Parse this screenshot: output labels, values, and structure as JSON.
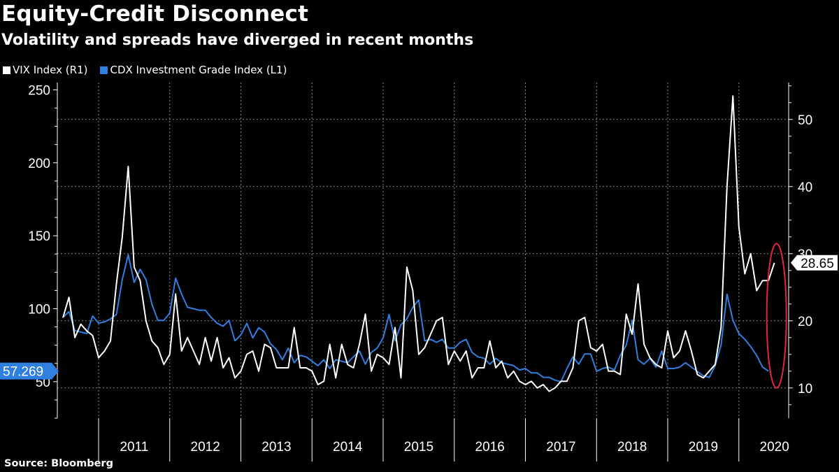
{
  "title": "Equity-Credit Disconnect",
  "subtitle": "Volatility and spreads have diverged in recent months",
  "source": "Source:  Bloomberg",
  "colors": {
    "vix": "#ffffff",
    "cdx": "#2f7fe0",
    "highlight": "#e0263a",
    "grid": "#8a8a8a"
  },
  "chart_data": {
    "type": "line",
    "title": "Equity-Credit Disconnect",
    "subtitle": "Volatility and spreads have diverged in recent months",
    "x_start": 2010.5,
    "x_step": 0.0833333,
    "xlim": [
      2010.42,
      2020.7
    ],
    "year_labels": [
      "2011",
      "2012",
      "2013",
      "2014",
      "2015",
      "2016",
      "2017",
      "2018",
      "2019",
      "2020"
    ],
    "left_axis": {
      "series": "CDX Investment Grade Index (L1)",
      "ylim": [
        25,
        255
      ],
      "ticks": [
        50,
        100,
        150,
        200,
        250
      ]
    },
    "right_axis": {
      "series": "VIX Index (R1)",
      "ylim": [
        5.5,
        55.5
      ],
      "ticks": [
        10,
        20,
        30,
        40,
        50
      ]
    },
    "series": [
      {
        "name": "VIX Index (R1)",
        "axis": "right",
        "last_value_label": "28.65",
        "values": [
          20.5,
          23.5,
          17.5,
          19.5,
          18.5,
          17.8,
          14.5,
          15.5,
          17,
          25.5,
          32.5,
          43,
          28,
          26,
          20,
          17,
          16,
          13.5,
          15,
          24,
          15.5,
          17.5,
          15.5,
          13.5,
          17.5,
          14,
          17.5,
          13,
          14.5,
          11.5,
          12.5,
          15,
          15.5,
          12.5,
          16.5,
          16,
          13,
          13,
          13,
          19,
          13,
          13,
          12.5,
          10.5,
          11,
          16.5,
          11.5,
          16.5,
          13.5,
          13,
          16.5,
          21,
          12.5,
          15,
          14.5,
          13.5,
          19,
          11.5,
          28,
          24.5,
          15,
          16,
          18,
          20,
          20.5,
          13.5,
          15.5,
          14,
          15.5,
          11.5,
          13,
          13,
          17,
          13,
          14,
          11.5,
          12.5,
          11,
          10.5,
          11,
          10,
          10.5,
          9.5,
          10,
          11,
          11,
          13,
          20,
          20.5,
          16,
          15.5,
          16.5,
          12.5,
          12.5,
          12,
          21,
          18,
          25.5,
          16.5,
          14.5,
          13.5,
          13,
          18.5,
          14.5,
          15.5,
          18.5,
          15.5,
          12,
          11.5,
          12.5,
          13.5,
          19,
          40,
          53.5,
          34,
          27,
          30,
          24.5,
          26,
          26,
          28.65
        ]
      },
      {
        "name": "CDX Investment Grade Index (L1)",
        "axis": "left",
        "last_value_label": "57.269",
        "values": [
          94,
          98,
          85,
          84,
          83,
          95,
          90,
          91,
          93,
          96,
          120,
          137,
          118,
          127,
          120,
          103,
          92,
          92,
          97,
          121,
          110,
          101,
          100,
          99,
          99,
          94,
          90,
          88,
          92,
          78,
          82,
          90,
          80,
          87,
          84,
          76,
          72,
          65,
          73,
          63,
          68,
          67,
          64,
          61,
          65,
          59,
          65,
          64,
          63,
          67,
          71,
          62,
          70,
          73,
          80,
          96,
          78,
          89,
          93,
          101,
          106,
          78,
          79,
          77,
          79,
          73,
          73,
          77,
          79,
          70,
          67,
          66,
          62,
          66,
          63,
          62,
          61,
          58,
          59,
          56,
          56,
          53,
          53,
          51,
          50,
          59,
          67,
          62,
          69,
          69,
          57,
          59,
          60,
          58,
          68,
          75,
          92,
          65,
          62,
          66,
          60,
          71,
          59,
          59,
          60,
          63,
          60,
          57,
          54,
          53,
          61,
          75,
          110,
          92,
          83,
          79,
          74,
          68,
          60,
          57.269
        ]
      }
    ]
  }
}
